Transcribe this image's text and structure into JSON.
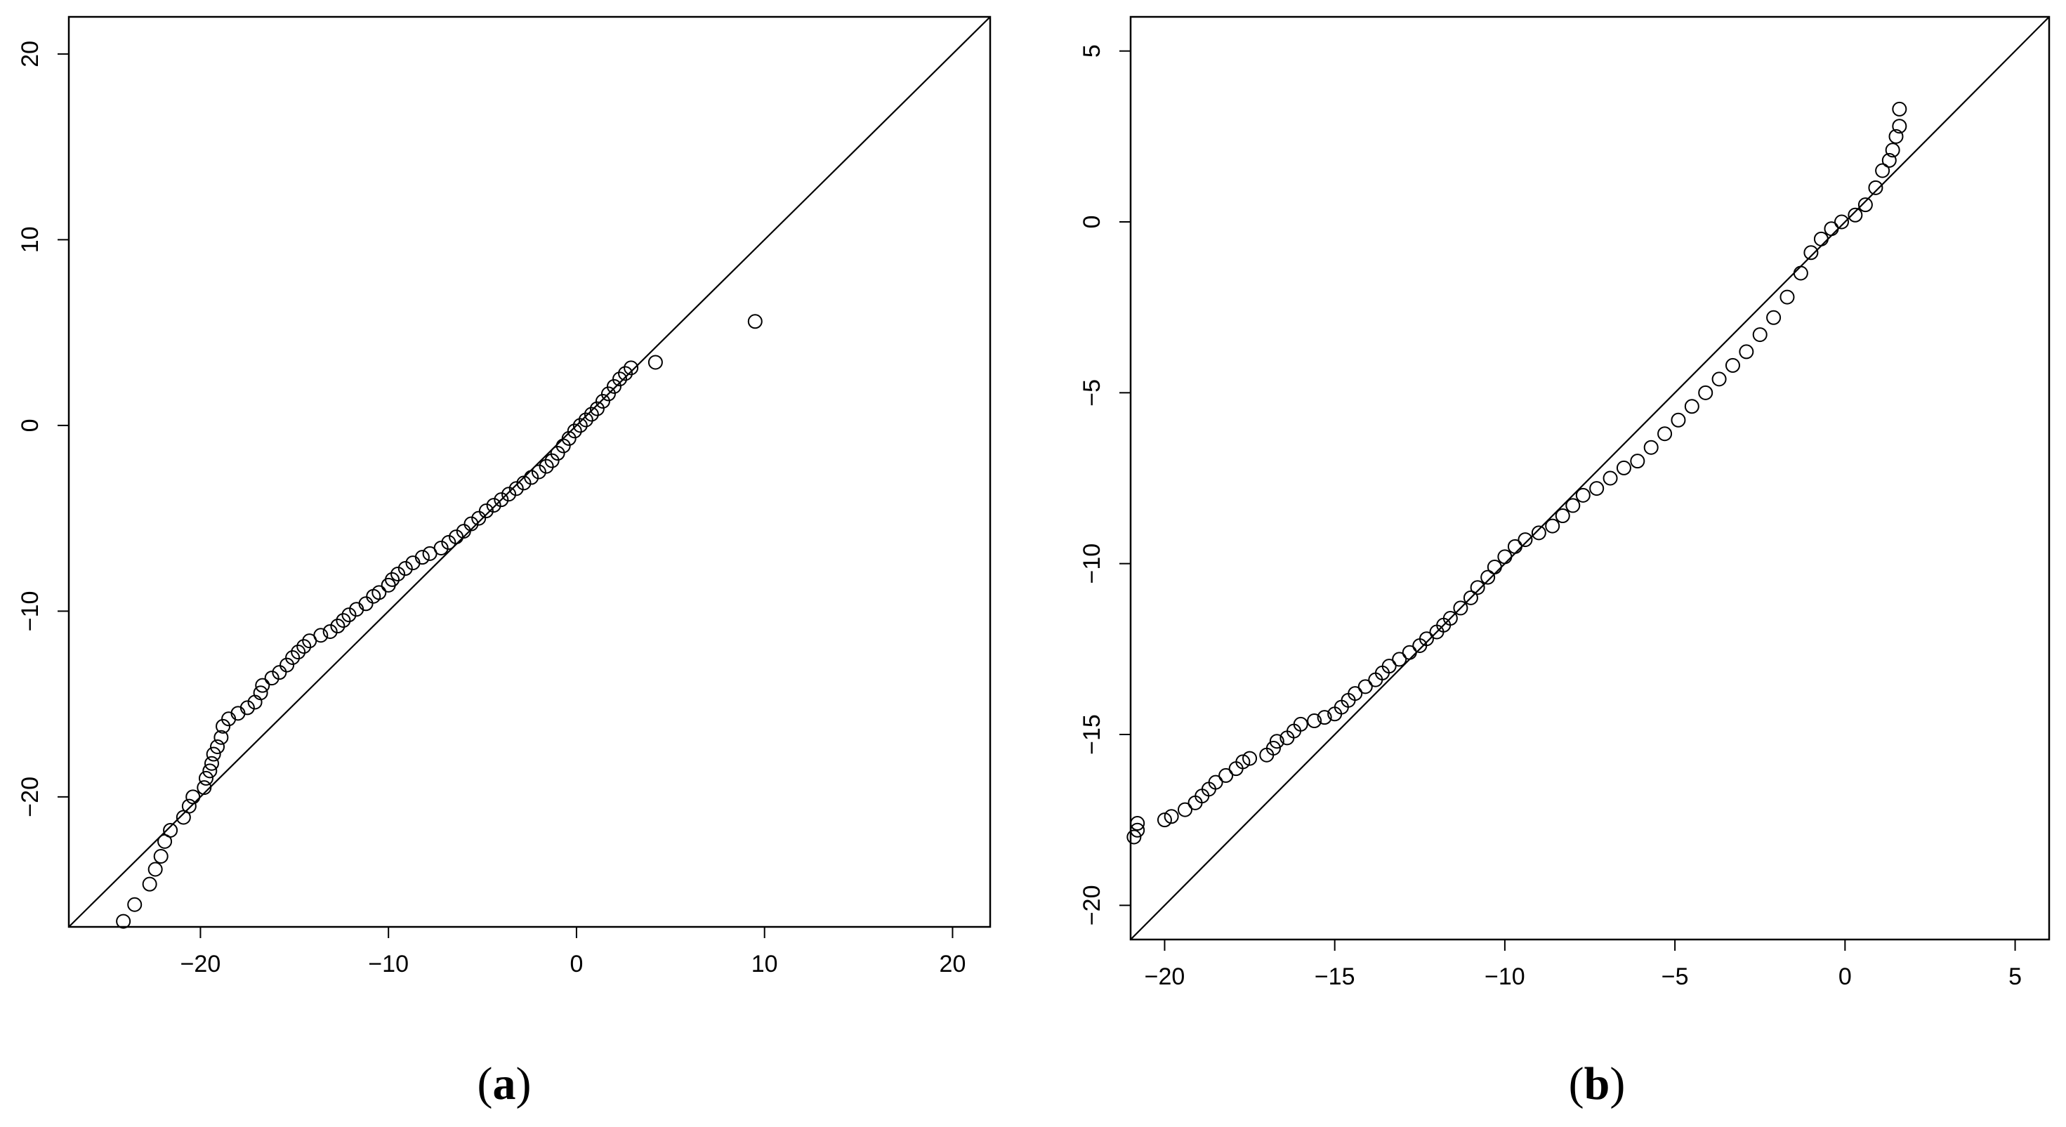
{
  "chart_data": [
    {
      "type": "scatter",
      "panel_label": "a",
      "xlim": [
        -27,
        22
      ],
      "ylim": [
        -27,
        22
      ],
      "x_ticks": [
        -20,
        -10,
        0,
        10,
        20
      ],
      "y_ticks": [
        -20,
        -10,
        0,
        10,
        20
      ],
      "reference_line": "y = x",
      "marker": "open circle",
      "color": "#000000",
      "points": [
        [
          -24.1,
          -26.7
        ],
        [
          -23.5,
          -25.8
        ],
        [
          -22.7,
          -24.7
        ],
        [
          -22.4,
          -23.9
        ],
        [
          -22.1,
          -23.2
        ],
        [
          -21.9,
          -22.4
        ],
        [
          -21.6,
          -21.8
        ],
        [
          -20.9,
          -21.1
        ],
        [
          -20.6,
          -20.5
        ],
        [
          -20.4,
          -20.0
        ],
        [
          -19.8,
          -19.5
        ],
        [
          -19.7,
          -19.0
        ],
        [
          -19.5,
          -18.6
        ],
        [
          -19.4,
          -18.2
        ],
        [
          -19.3,
          -17.7
        ],
        [
          -19.1,
          -17.3
        ],
        [
          -18.9,
          -16.8
        ],
        [
          -18.8,
          -16.2
        ],
        [
          -18.5,
          -15.8
        ],
        [
          -18.0,
          -15.5
        ],
        [
          -17.5,
          -15.2
        ],
        [
          -17.1,
          -14.9
        ],
        [
          -16.8,
          -14.4
        ],
        [
          -16.7,
          -14.0
        ],
        [
          -16.2,
          -13.6
        ],
        [
          -15.8,
          -13.3
        ],
        [
          -15.4,
          -12.9
        ],
        [
          -15.1,
          -12.5
        ],
        [
          -14.8,
          -12.2
        ],
        [
          -14.5,
          -11.9
        ],
        [
          -14.2,
          -11.6
        ],
        [
          -13.6,
          -11.3
        ],
        [
          -13.1,
          -11.1
        ],
        [
          -12.7,
          -10.8
        ],
        [
          -12.4,
          -10.5
        ],
        [
          -12.1,
          -10.2
        ],
        [
          -11.7,
          -9.9
        ],
        [
          -11.2,
          -9.6
        ],
        [
          -10.8,
          -9.2
        ],
        [
          -10.5,
          -9.0
        ],
        [
          -10.0,
          -8.6
        ],
        [
          -9.8,
          -8.3
        ],
        [
          -9.5,
          -8.0
        ],
        [
          -9.1,
          -7.7
        ],
        [
          -8.7,
          -7.4
        ],
        [
          -8.2,
          -7.1
        ],
        [
          -7.8,
          -6.9
        ],
        [
          -7.2,
          -6.6
        ],
        [
          -6.8,
          -6.3
        ],
        [
          -6.4,
          -6.0
        ],
        [
          -6.0,
          -5.7
        ],
        [
          -5.6,
          -5.3
        ],
        [
          -5.2,
          -5.0
        ],
        [
          -4.8,
          -4.6
        ],
        [
          -4.4,
          -4.3
        ],
        [
          -4.0,
          -4.0
        ],
        [
          -3.6,
          -3.7
        ],
        [
          -3.2,
          -3.4
        ],
        [
          -2.8,
          -3.1
        ],
        [
          -2.4,
          -2.8
        ],
        [
          -2.0,
          -2.5
        ],
        [
          -1.6,
          -2.2
        ],
        [
          -1.3,
          -1.9
        ],
        [
          -1.0,
          -1.5
        ],
        [
          -0.7,
          -1.1
        ],
        [
          -0.4,
          -0.7
        ],
        [
          -0.1,
          -0.3
        ],
        [
          0.2,
          0.0
        ],
        [
          0.5,
          0.3
        ],
        [
          0.8,
          0.6
        ],
        [
          1.1,
          0.9
        ],
        [
          1.4,
          1.3
        ],
        [
          1.7,
          1.7
        ],
        [
          2.0,
          2.1
        ],
        [
          2.3,
          2.5
        ],
        [
          2.6,
          2.8
        ],
        [
          2.9,
          3.1
        ],
        [
          4.2,
          3.4
        ],
        [
          9.5,
          5.6
        ]
      ]
    },
    {
      "type": "scatter",
      "panel_label": "b",
      "xlim": [
        -21,
        6
      ],
      "ylim": [
        -21,
        6
      ],
      "x_ticks": [
        -20,
        -15,
        -10,
        -5,
        0,
        5
      ],
      "y_ticks": [
        -20,
        -15,
        -10,
        -5,
        0,
        5
      ],
      "reference_line": "y = x",
      "marker": "open circle",
      "color": "#000000",
      "points": [
        [
          -20.9,
          -18.0
        ],
        [
          -20.8,
          -17.8
        ],
        [
          -20.8,
          -17.6
        ],
        [
          -20.0,
          -17.5
        ],
        [
          -19.8,
          -17.4
        ],
        [
          -19.4,
          -17.2
        ],
        [
          -19.1,
          -17.0
        ],
        [
          -18.9,
          -16.8
        ],
        [
          -18.7,
          -16.6
        ],
        [
          -18.5,
          -16.4
        ],
        [
          -18.2,
          -16.2
        ],
        [
          -17.9,
          -16.0
        ],
        [
          -17.7,
          -15.8
        ],
        [
          -17.5,
          -15.7
        ],
        [
          -17.0,
          -15.6
        ],
        [
          -16.8,
          -15.4
        ],
        [
          -16.7,
          -15.2
        ],
        [
          -16.4,
          -15.1
        ],
        [
          -16.2,
          -14.9
        ],
        [
          -16.0,
          -14.7
        ],
        [
          -15.6,
          -14.6
        ],
        [
          -15.3,
          -14.5
        ],
        [
          -15.0,
          -14.4
        ],
        [
          -14.8,
          -14.2
        ],
        [
          -14.6,
          -14.0
        ],
        [
          -14.4,
          -13.8
        ],
        [
          -14.1,
          -13.6
        ],
        [
          -13.8,
          -13.4
        ],
        [
          -13.6,
          -13.2
        ],
        [
          -13.4,
          -13.0
        ],
        [
          -13.1,
          -12.8
        ],
        [
          -12.8,
          -12.6
        ],
        [
          -12.5,
          -12.4
        ],
        [
          -12.3,
          -12.2
        ],
        [
          -12.0,
          -12.0
        ],
        [
          -11.8,
          -11.8
        ],
        [
          -11.6,
          -11.6
        ],
        [
          -11.3,
          -11.3
        ],
        [
          -11.0,
          -11.0
        ],
        [
          -10.8,
          -10.7
        ],
        [
          -10.5,
          -10.4
        ],
        [
          -10.3,
          -10.1
        ],
        [
          -10.0,
          -9.8
        ],
        [
          -9.7,
          -9.5
        ],
        [
          -9.4,
          -9.3
        ],
        [
          -9.0,
          -9.1
        ],
        [
          -8.6,
          -8.9
        ],
        [
          -8.3,
          -8.6
        ],
        [
          -8.0,
          -8.3
        ],
        [
          -7.7,
          -8.0
        ],
        [
          -7.3,
          -7.8
        ],
        [
          -6.9,
          -7.5
        ],
        [
          -6.5,
          -7.2
        ],
        [
          -6.1,
          -7.0
        ],
        [
          -5.7,
          -6.6
        ],
        [
          -5.3,
          -6.2
        ],
        [
          -4.9,
          -5.8
        ],
        [
          -4.5,
          -5.4
        ],
        [
          -4.1,
          -5.0
        ],
        [
          -3.7,
          -4.6
        ],
        [
          -3.3,
          -4.2
        ],
        [
          -2.9,
          -3.8
        ],
        [
          -2.5,
          -3.3
        ],
        [
          -2.1,
          -2.8
        ],
        [
          -1.7,
          -2.2
        ],
        [
          -1.3,
          -1.5
        ],
        [
          -1.0,
          -0.9
        ],
        [
          -0.7,
          -0.5
        ],
        [
          -0.4,
          -0.2
        ],
        [
          -0.1,
          0.0
        ],
        [
          0.3,
          0.2
        ],
        [
          0.6,
          0.5
        ],
        [
          0.9,
          1.0
        ],
        [
          1.1,
          1.5
        ],
        [
          1.3,
          1.8
        ],
        [
          1.4,
          2.1
        ],
        [
          1.5,
          2.5
        ],
        [
          1.6,
          2.8
        ],
        [
          1.6,
          3.3
        ]
      ]
    }
  ]
}
